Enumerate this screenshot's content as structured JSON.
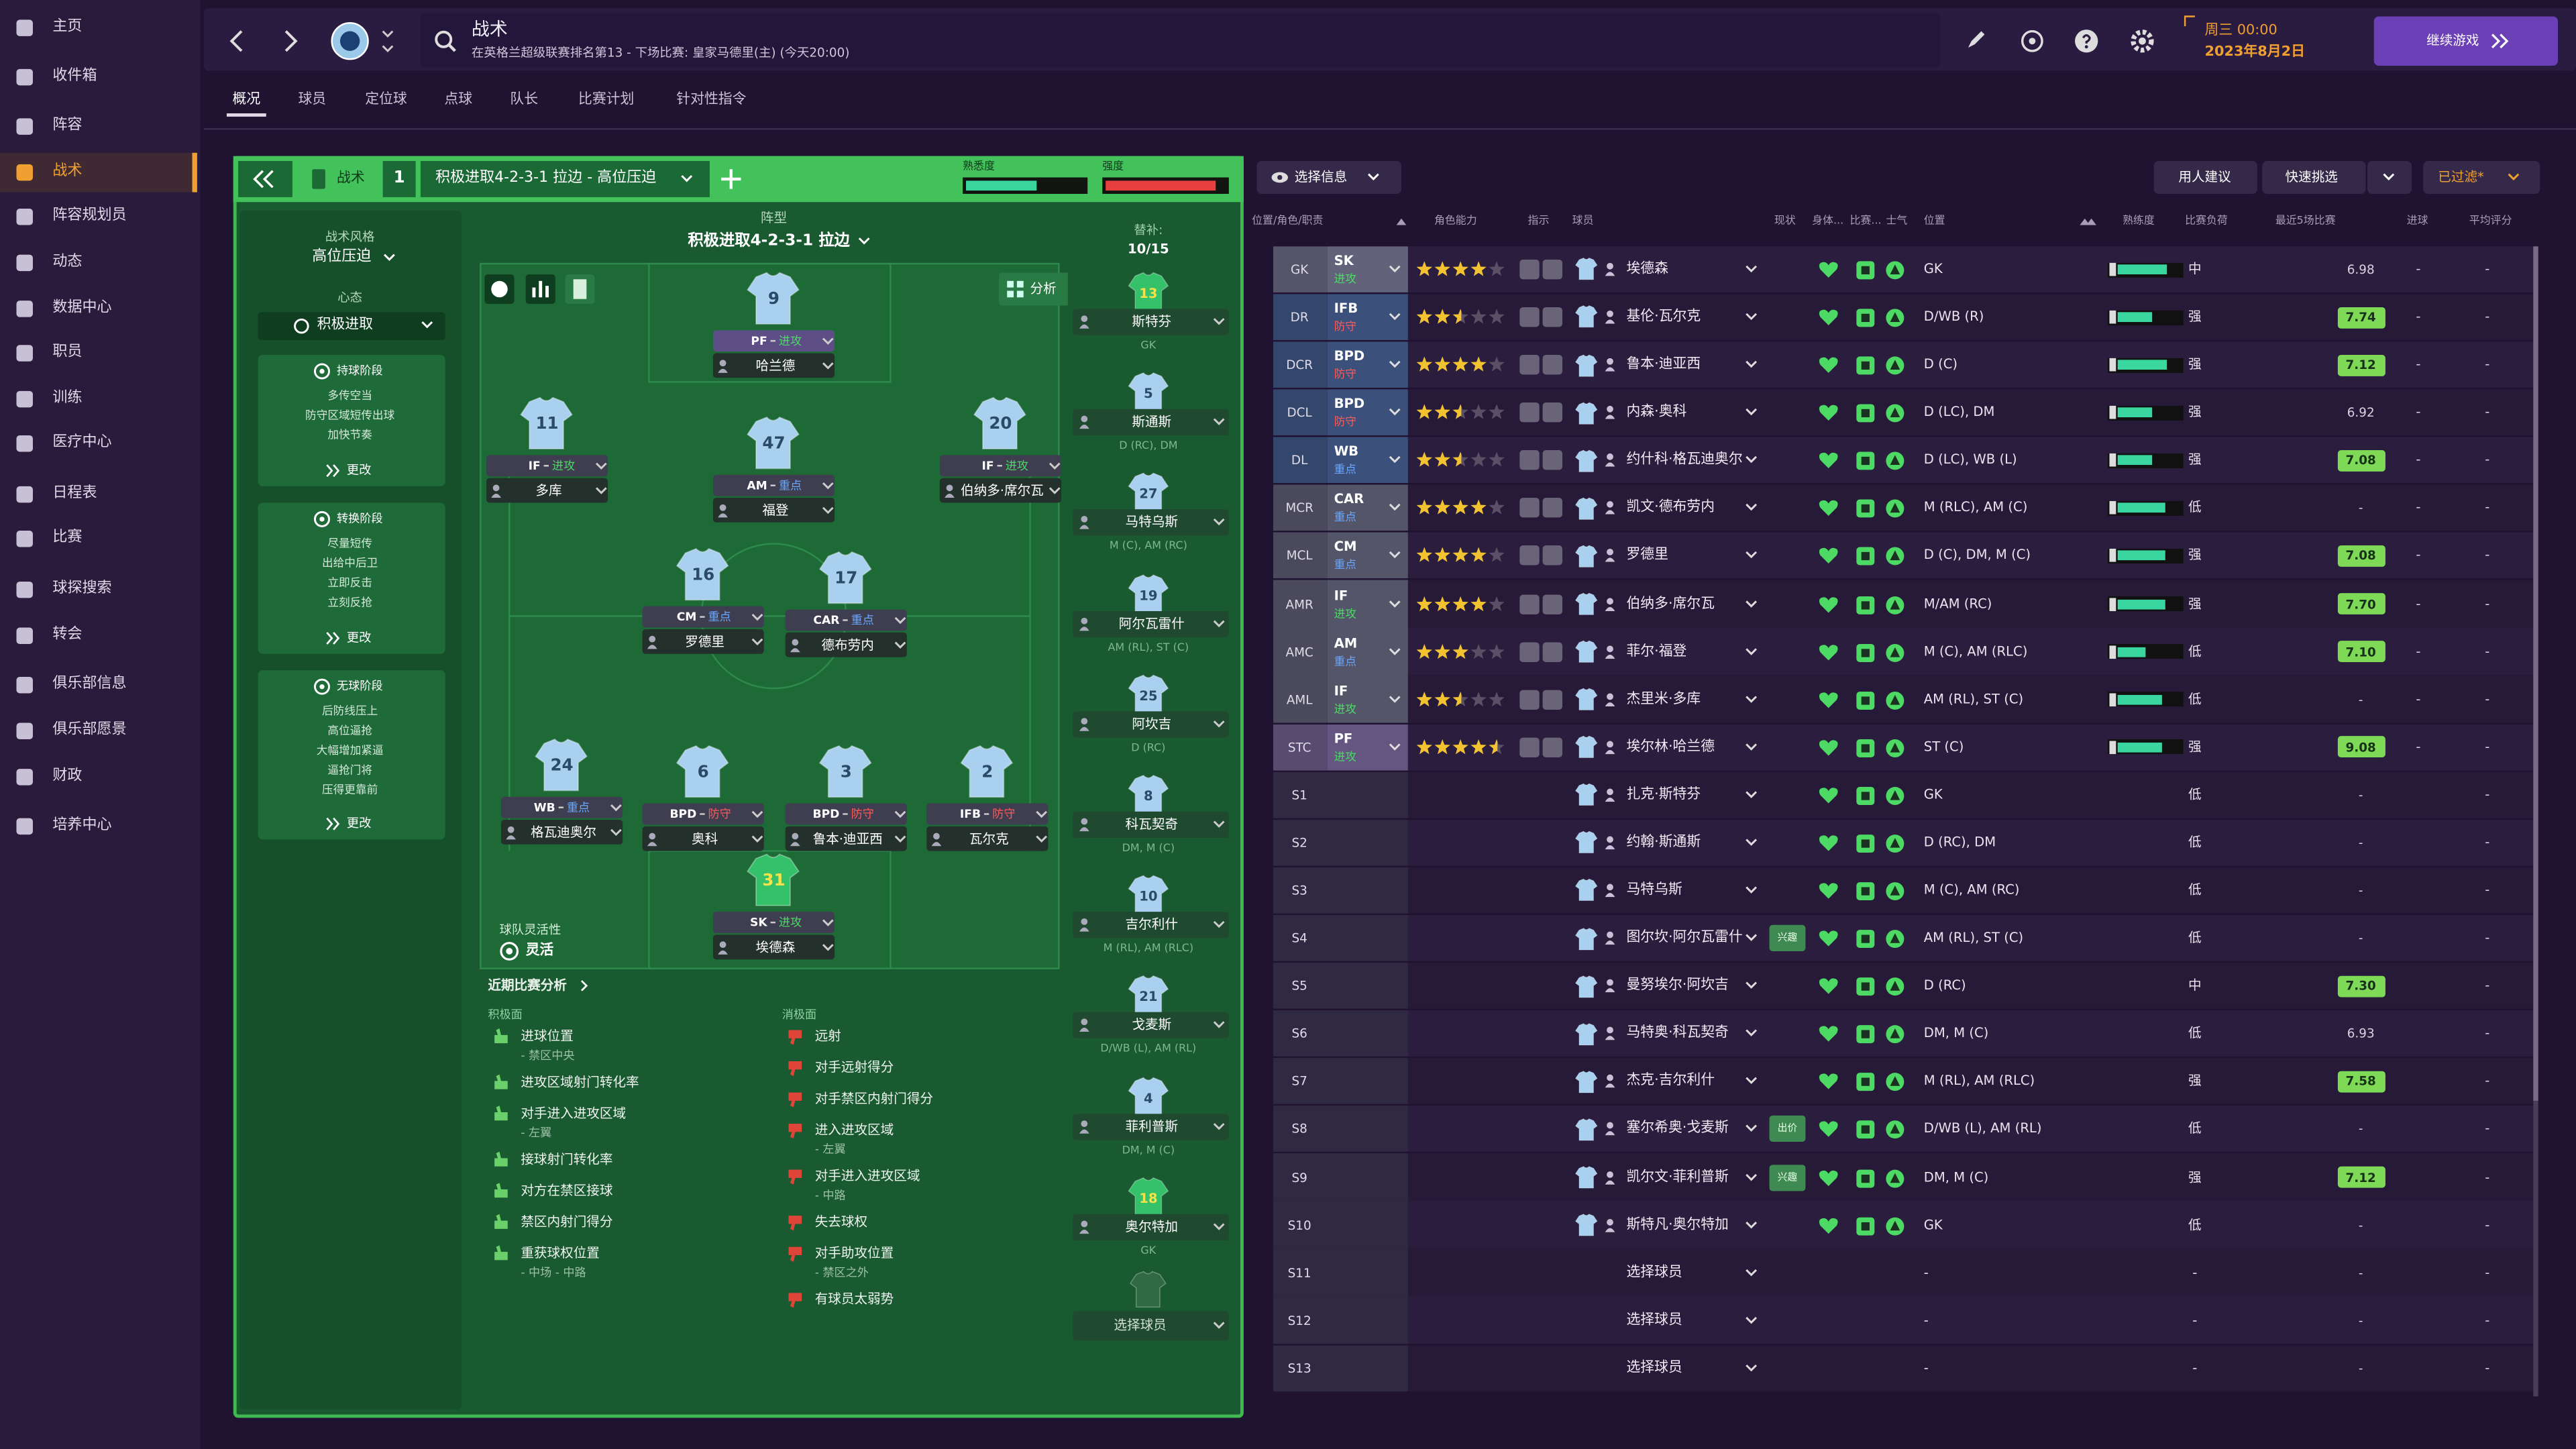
{
  "sidebar": {
    "items": [
      "主页",
      "收件箱",
      "阵容",
      "战术",
      "阵容规划员",
      "动态",
      "数据中心",
      "职员",
      "训练",
      "医疗中心",
      "日程表",
      "比赛",
      "球探搜索",
      "转会",
      "俱乐部信息",
      "俱乐部愿景",
      "财政",
      "培养中心"
    ]
  },
  "header": {
    "title": "战术",
    "subtitle": "在英格兰超级联赛排名第13 - 下场比赛: 皇家马德里(主) (今天20:00)",
    "day_time": "周三 00:00",
    "date": "2023年8月2日",
    "continue": "继续游戏"
  },
  "tabs": [
    "概况",
    "球员",
    "定位球",
    "点球",
    "队长",
    "比赛计划",
    "针对性指令"
  ],
  "tactic": {
    "label": "战术",
    "slot": 1,
    "name": "积极进取4-2-3-1 拉边 - 高位压迫",
    "familiarity_label": "熟悉度",
    "familiarity": 60,
    "intensity_label": "强度",
    "intensity": 92
  },
  "style": {
    "style_label": "战术风格",
    "style": "高位压迫",
    "mentality_label": "心态",
    "mentality": "积极进取",
    "phases": [
      {
        "title": "持球阶段",
        "items": [
          "多传空当",
          "防守区域短传出球",
          "加快节奏"
        ],
        "change": "更改"
      },
      {
        "title": "转换阶段",
        "items": [
          "尽量短传",
          "出给中后卫",
          "立即反击",
          "立刻反抢"
        ],
        "change": "更改"
      },
      {
        "title": "无球阶段",
        "items": [
          "后防线压上",
          "高位逼抢",
          "大幅增加紧逼",
          "逼抢门将",
          "压得更靠前"
        ],
        "change": "更改"
      }
    ],
    "flex_label": "球队灵活性",
    "flex": "灵活"
  },
  "pitch": {
    "formation_label": "阵型",
    "formation": "积极进取4-2-3-1 拉边",
    "analysis_button": "分析",
    "players": [
      {
        "number": 9,
        "role": "PF",
        "duty": "进攻",
        "duty_color": "#4cd964",
        "name": "哈兰德",
        "color": "#a9d0ee"
      },
      {
        "number": 11,
        "role": "IF",
        "duty": "进攻",
        "duty_color": "#4cd964",
        "name": "多库",
        "color": "#a9d0ee"
      },
      {
        "number": 47,
        "role": "AM",
        "duty": "重点",
        "duty_color": "#6aa8ff",
        "name": "福登",
        "color": "#a9d0ee"
      },
      {
        "number": 20,
        "role": "IF",
        "duty": "进攻",
        "duty_color": "#4cd964",
        "name": "伯纳多·席尔瓦",
        "color": "#a9d0ee"
      },
      {
        "number": 16,
        "role": "CM",
        "duty": "重点",
        "duty_color": "#6aa8ff",
        "name": "罗德里",
        "color": "#a9d0ee"
      },
      {
        "number": 17,
        "role": "CAR",
        "duty": "重点",
        "duty_color": "#6aa8ff",
        "name": "德布劳内",
        "color": "#a9d0ee"
      },
      {
        "number": 24,
        "role": "WB",
        "duty": "重点",
        "duty_color": "#6aa8ff",
        "name": "格瓦迪奥尔",
        "color": "#a9d0ee"
      },
      {
        "number": 6,
        "role": "BPD",
        "duty": "防守",
        "duty_color": "#ff5a5a",
        "name": "奥科",
        "color": "#a9d0ee"
      },
      {
        "number": 3,
        "role": "BPD",
        "duty": "防守",
        "duty_color": "#ff5a5a",
        "name": "鲁本·迪亚西",
        "color": "#a9d0ee"
      },
      {
        "number": 2,
        "role": "IFB",
        "duty": "防守",
        "duty_color": "#ff5a5a",
        "name": "瓦尔克",
        "color": "#a9d0ee"
      },
      {
        "number": 31,
        "role": "SK",
        "duty": "进攻",
        "duty_color": "#4cd964",
        "name": "埃德森",
        "color": "#35c06a"
      }
    ]
  },
  "subs": {
    "label": "替补:",
    "count": "10/15",
    "players": [
      {
        "number": 13,
        "name": "斯特芬",
        "position": "GK",
        "color": "#35c06a"
      },
      {
        "number": 5,
        "name": "斯通斯",
        "position": "D (RC), DM",
        "color": "#a9d0ee"
      },
      {
        "number": 27,
        "name": "马特乌斯",
        "position": "M (C), AM (RC)",
        "color": "#a9d0ee"
      },
      {
        "number": 19,
        "name": "阿尔瓦雷什",
        "position": "AM (RL), ST (C)",
        "color": "#a9d0ee"
      },
      {
        "number": 25,
        "name": "阿坎吉",
        "position": "D (RC)",
        "color": "#a9d0ee"
      },
      {
        "number": 8,
        "name": "科瓦契奇",
        "position": "DM, M (C)",
        "color": "#a9d0ee"
      },
      {
        "number": 10,
        "name": "吉尔利什",
        "position": "M (RL), AM (RLC)",
        "color": "#a9d0ee"
      },
      {
        "number": 21,
        "name": "戈麦斯",
        "position": "D/WB (L), AM (RL)",
        "color": "#a9d0ee"
      },
      {
        "number": 4,
        "name": "菲利普斯",
        "position": "DM, M (C)",
        "color": "#a9d0ee"
      },
      {
        "number": 18,
        "name": "奥尔特加",
        "position": "GK",
        "color": "#35c06a"
      }
    ],
    "select": "选择球员"
  },
  "analysis": {
    "title": "近期比赛分析",
    "positive_label": "积极面",
    "negative_label": "消极面",
    "positive": [
      {
        "text": "进球位置",
        "sub": "- 禁区中央"
      },
      {
        "text": "进攻区域射门转化率"
      },
      {
        "text": "对手进入进攻区域",
        "sub": "- 左翼"
      },
      {
        "text": "接球射门转化率"
      },
      {
        "text": "对方在禁区接球"
      },
      {
        "text": "禁区内射门得分"
      },
      {
        "text": "重获球权位置",
        "sub": "- 中场 - 中路"
      }
    ],
    "negative": [
      {
        "text": "远射"
      },
      {
        "text": "对手远射得分"
      },
      {
        "text": "对手禁区内射门得分"
      },
      {
        "text": "进入进攻区域",
        "sub": "- 左翼"
      },
      {
        "text": "对手进入进攻区域",
        "sub": "- 中路"
      },
      {
        "text": "失去球权"
      },
      {
        "text": "对手助攻位置",
        "sub": "- 禁区之外"
      },
      {
        "text": "有球员太弱势"
      }
    ]
  },
  "selection": {
    "info": "选择信息",
    "advice": "用人建议",
    "quick": "快速挑选",
    "filtered": "已过滤*",
    "columns": [
      "位置/角色/职责",
      "角色能力",
      "指示",
      "球员",
      "现状",
      "身体...",
      "比赛...",
      "士气",
      "位置",
      "熟练度",
      "比赛负荷",
      "最近5场比赛",
      "进球",
      "平均评分"
    ],
    "rows": [
      {
        "pos": "GK",
        "role": "SK",
        "duty": "进攻",
        "duty_color": "#4cd964",
        "stars": 4,
        "name": "埃德森",
        "condition_color": "#4cd964",
        "position": "GK",
        "familiarity": 80,
        "load": "中",
        "form": "6.98",
        "goals": "-",
        "avg": "-"
      },
      {
        "pos": "DR",
        "role": "IFB",
        "duty": "防守",
        "duty_color": "#ff5a5a",
        "stars": 2.5,
        "name": "基伦·瓦尔克",
        "condition_color": "#4cd964",
        "position": "D/WB (R)",
        "familiarity": 55,
        "load": "强",
        "form": "7.74",
        "goals": "-",
        "avg": "-"
      },
      {
        "pos": "DCR",
        "role": "BPD",
        "duty": "防守",
        "duty_color": "#ff5a5a",
        "stars": 4,
        "name": "鲁本·迪亚西",
        "condition_color": "#4cd964",
        "position": "D (C)",
        "familiarity": 80,
        "load": "强",
        "form": "7.12",
        "goals": "-",
        "avg": "-"
      },
      {
        "pos": "DCL",
        "role": "BPD",
        "duty": "防守",
        "duty_color": "#ff5a5a",
        "stars": 2.5,
        "name": "内森·奥科",
        "condition_color": "#4cd964",
        "position": "D (LC), DM",
        "familiarity": 55,
        "load": "强",
        "form": "6.92",
        "goals": "-",
        "avg": "-"
      },
      {
        "pos": "DL",
        "role": "WB",
        "duty": "重点",
        "duty_color": "#6aa8ff",
        "stars": 2.5,
        "name": "约什科·格瓦迪奥尔",
        "condition_color": "#4cd964",
        "position": "D (LC), WB (L)",
        "familiarity": 55,
        "load": "强",
        "form": "7.08",
        "goals": "-",
        "avg": "-"
      },
      {
        "pos": "MCR",
        "role": "CAR",
        "duty": "重点",
        "duty_color": "#6aa8ff",
        "stars": 4,
        "name": "凯文·德布劳内",
        "condition_color": "#4cd964",
        "position": "M (RLC), AM (C)",
        "familiarity": 75,
        "load": "低",
        "form": "-",
        "goals": "-",
        "avg": "-"
      },
      {
        "pos": "MCL",
        "role": "CM",
        "duty": "重点",
        "duty_color": "#6aa8ff",
        "stars": 4,
        "name": "罗德里",
        "condition_color": "#4cd964",
        "position": "D (C), DM, M (C)",
        "familiarity": 75,
        "load": "强",
        "form": "7.08",
        "goals": "-",
        "avg": "-"
      },
      {
        "pos": "AMR",
        "role": "IF",
        "duty": "进攻",
        "duty_color": "#4cd964",
        "stars": 4,
        "name": "伯纳多·席尔瓦",
        "condition_color": "#4cd964",
        "position": "M/AM (RC)",
        "familiarity": 75,
        "load": "强",
        "form": "7.70",
        "goals": "-",
        "avg": "-"
      },
      {
        "pos": "AMC",
        "role": "AM",
        "duty": "重点",
        "duty_color": "#6aa8ff",
        "stars": 3,
        "name": "菲尔·福登",
        "condition_color": "#4cd964",
        "position": "M (C), AM (RLC)",
        "familiarity": 45,
        "load": "低",
        "form": "7.10",
        "goals": "-",
        "avg": "-"
      },
      {
        "pos": "AML",
        "role": "IF",
        "duty": "进攻",
        "duty_color": "#4cd964",
        "stars": 2.5,
        "name": "杰里米·多库",
        "condition_color": "#4cd964",
        "position": "AM (RL), ST (C)",
        "familiarity": 70,
        "load": "低",
        "form": "-",
        "goals": "-",
        "avg": "-"
      },
      {
        "pos": "STC",
        "role": "PF",
        "duty": "进攻",
        "duty_color": "#4cd964",
        "stars": 4.5,
        "name": "埃尔林·哈兰德",
        "condition_color": "#4cd964",
        "position": "ST (C)",
        "familiarity": 70,
        "load": "强",
        "form": "9.08",
        "goals": "-",
        "avg": "-"
      },
      {
        "pos": "S1",
        "name": "扎克·斯特芬",
        "condition_color": "#4cd964",
        "position": "GK",
        "load": "低",
        "form": "-",
        "avg": "-"
      },
      {
        "pos": "S2",
        "name": "约翰·斯通斯",
        "condition_color": "#4cd964",
        "position": "D (RC), DM",
        "load": "低",
        "form": "-",
        "avg": "-"
      },
      {
        "pos": "S3",
        "name": "马特乌斯",
        "condition_color": "#4cd964",
        "position": "M (C), AM (RC)",
        "load": "低",
        "form": "-",
        "avg": "-"
      },
      {
        "pos": "S4",
        "name": "图尔坎·阿尔瓦雷什",
        "status": "兴趣",
        "condition_color": "#4cd964",
        "position": "AM (RL), ST (C)",
        "load": "低",
        "form": "-",
        "avg": "-"
      },
      {
        "pos": "S5",
        "name": "曼努埃尔·阿坎吉",
        "condition_color": "#4cd964",
        "position": "D (RC)",
        "load": "中",
        "form": "7.30",
        "avg": "-"
      },
      {
        "pos": "S6",
        "name": "马特奥·科瓦契奇",
        "condition_color": "#4cd964",
        "position": "DM, M (C)",
        "load": "低",
        "form": "6.93",
        "avg": "-"
      },
      {
        "pos": "S7",
        "name": "杰克·吉尔利什",
        "condition_color": "#4cd964",
        "position": "M (RL), AM (RLC)",
        "load": "强",
        "form": "7.58",
        "avg": "-"
      },
      {
        "pos": "S8",
        "name": "塞尔希奥·戈麦斯",
        "status": "出价",
        "condition_color": "#4cd964",
        "position": "D/WB (L), AM (RL)",
        "load": "低",
        "form": "-",
        "avg": "-"
      },
      {
        "pos": "S9",
        "name": "凯尔文·菲利普斯",
        "status": "兴趣",
        "condition_color": "#4cd964",
        "position": "DM, M (C)",
        "load": "强",
        "form": "7.12",
        "avg": "-"
      },
      {
        "pos": "S10",
        "name": "斯特凡·奥尔特加",
        "condition_color": "#4cd964",
        "position": "GK",
        "load": "低",
        "form": "-",
        "avg": "-"
      },
      {
        "pos": "S11",
        "name": "选择球员",
        "position": "-",
        "load": "-",
        "form": "-",
        "avg": "-"
      },
      {
        "pos": "S12",
        "name": "选择球员",
        "position": "-",
        "load": "-",
        "form": "-",
        "avg": "-"
      },
      {
        "pos": "S13",
        "name": "选择球员",
        "position": "-",
        "load": "-",
        "form": "-",
        "avg": "-"
      }
    ]
  }
}
